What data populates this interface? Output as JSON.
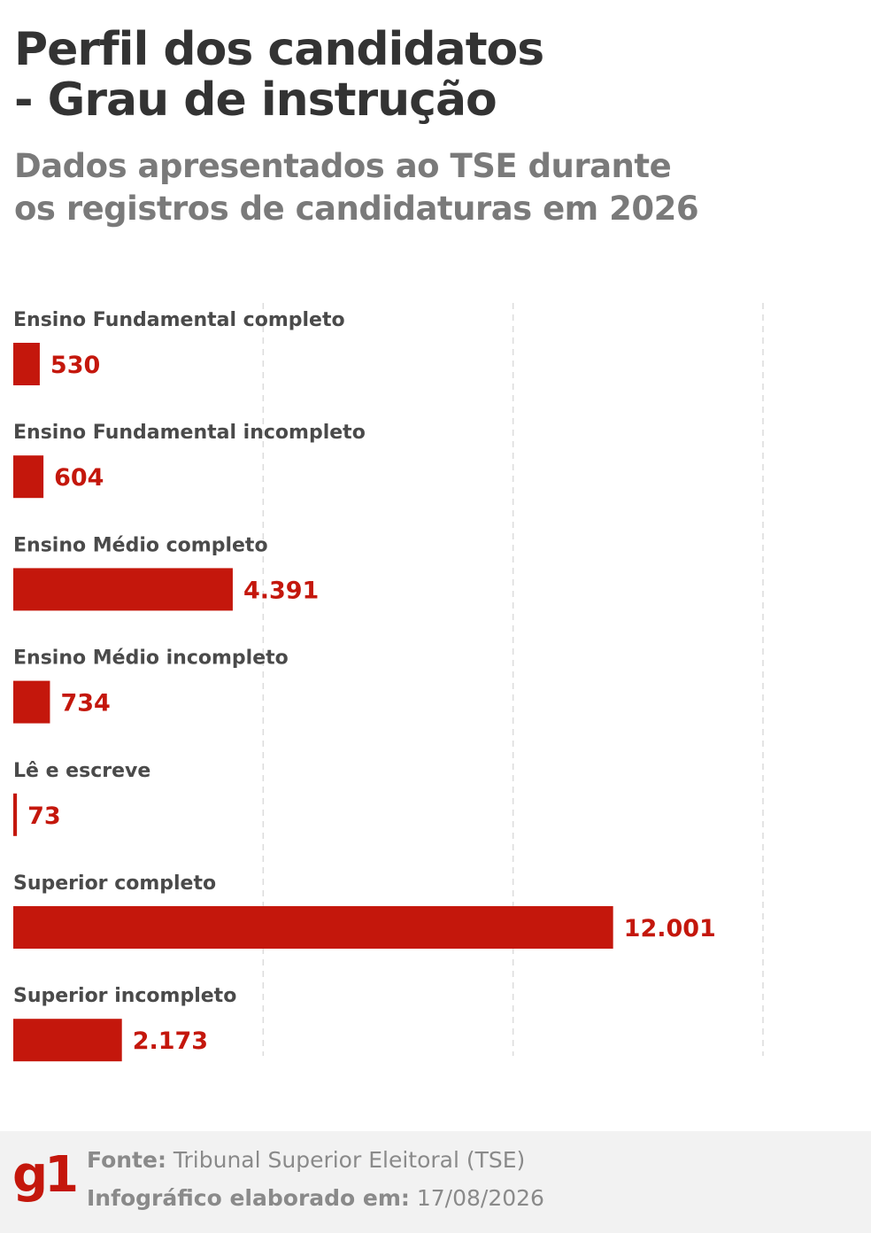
{
  "header": {
    "title_line1": "Perfil dos candidatos",
    "title_line2": "- Grau de instrução",
    "subtitle_line1": "Dados apresentados ao TSE durante",
    "subtitle_line2": "os registros de candidaturas em 2026"
  },
  "colors": {
    "bar": "#c4170c",
    "value_label": "#c4170c",
    "grid": "#dcdcdc",
    "logo": "#c4170c"
  },
  "chart_data": {
    "type": "bar",
    "orientation": "horizontal",
    "categories": [
      "Ensino Fundamental completo",
      "Ensino Fundamental incompleto",
      "Ensino Médio completo",
      "Ensino Médio incompleto",
      "Lê e escreve",
      "Superior completo",
      "Superior incompleto"
    ],
    "values": [
      530,
      604,
      4391,
      734,
      73,
      12001,
      2173
    ],
    "value_labels": [
      "530",
      "604",
      "4.391",
      "734",
      "73",
      "12.001",
      "2.173"
    ],
    "xlim": [
      0,
      15000
    ],
    "gridlines": [
      5000,
      10000,
      15000
    ],
    "grid": true,
    "gridline_style": "dashed",
    "legend": "none"
  },
  "footer": {
    "logo_text": "g1",
    "source_label": "Fonte:",
    "source_value": "Tribunal Superior Eleitoral (TSE)",
    "date_label": "Infográfico elaborado em:",
    "date_value": "17/08/2026"
  }
}
